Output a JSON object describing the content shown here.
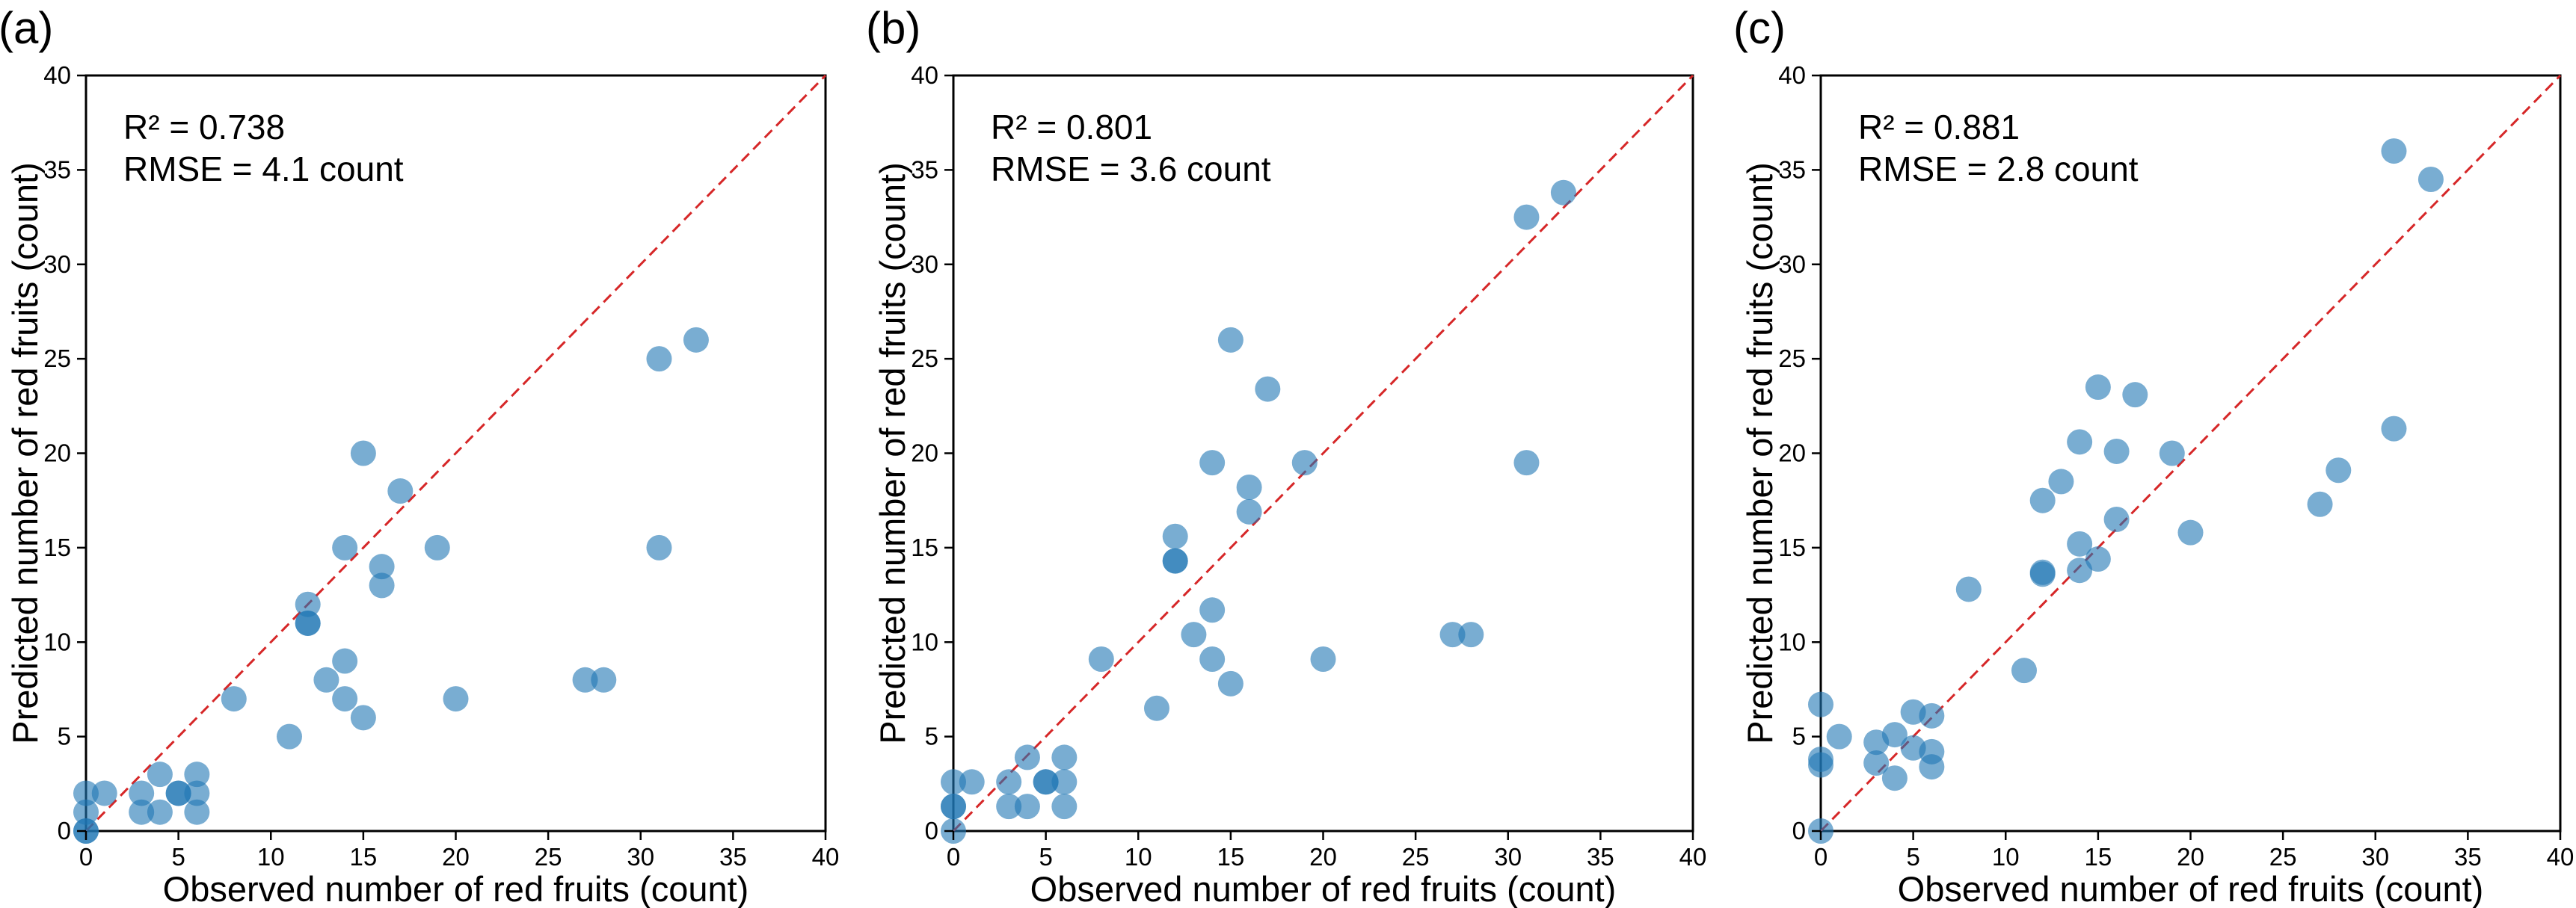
{
  "colors": {
    "points": "#1f77b4",
    "identity_line": "#d62728"
  },
  "chart_data": [
    {
      "type": "scatter",
      "panel_label": "(a)",
      "xlabel": "Observed number of red fruits (count)",
      "ylabel": "Predicted number of red fruits (count)",
      "xlim": [
        0,
        40
      ],
      "ylim": [
        0,
        40
      ],
      "xticks": [
        0,
        5,
        10,
        15,
        20,
        25,
        30,
        35,
        40
      ],
      "yticks": [
        0,
        5,
        10,
        15,
        20,
        25,
        30,
        35,
        40
      ],
      "annotations": [
        "R² = 0.738",
        "RMSE = 4.1 count"
      ],
      "reference_line": "1:1 dashed",
      "points": [
        [
          0,
          0
        ],
        [
          0,
          0
        ],
        [
          0,
          1
        ],
        [
          0,
          2
        ],
        [
          1,
          2
        ],
        [
          3,
          1
        ],
        [
          3,
          2
        ],
        [
          4,
          1
        ],
        [
          4,
          3
        ],
        [
          5,
          2
        ],
        [
          5,
          2
        ],
        [
          6,
          1
        ],
        [
          6,
          2
        ],
        [
          6,
          3
        ],
        [
          8,
          7
        ],
        [
          11,
          5
        ],
        [
          12,
          11
        ],
        [
          12,
          11
        ],
        [
          12,
          12
        ],
        [
          13,
          8
        ],
        [
          14,
          7
        ],
        [
          14,
          9
        ],
        [
          14,
          15
        ],
        [
          15,
          6
        ],
        [
          15,
          20
        ],
        [
          16,
          13
        ],
        [
          16,
          14
        ],
        [
          17,
          18
        ],
        [
          19,
          15
        ],
        [
          20,
          7
        ],
        [
          27,
          8
        ],
        [
          28,
          8
        ],
        [
          31,
          15
        ],
        [
          31,
          25
        ],
        [
          33,
          26
        ]
      ]
    },
    {
      "type": "scatter",
      "panel_label": "(b)",
      "xlabel": "Observed number of red fruits (count)",
      "ylabel": "Predicted number of red fruits (count)",
      "xlim": [
        0,
        40
      ],
      "ylim": [
        0,
        40
      ],
      "xticks": [
        0,
        5,
        10,
        15,
        20,
        25,
        30,
        35,
        40
      ],
      "yticks": [
        0,
        5,
        10,
        15,
        20,
        25,
        30,
        35,
        40
      ],
      "annotations": [
        "R² = 0.801",
        "RMSE = 3.6 count"
      ],
      "reference_line": "1:1 dashed",
      "points": [
        [
          0,
          0
        ],
        [
          0,
          1.3
        ],
        [
          0,
          1.3
        ],
        [
          0,
          2.6
        ],
        [
          1,
          2.6
        ],
        [
          3,
          1.3
        ],
        [
          3,
          2.6
        ],
        [
          4,
          1.3
        ],
        [
          4,
          3.9
        ],
        [
          5,
          2.6
        ],
        [
          5,
          2.6
        ],
        [
          6,
          1.3
        ],
        [
          6,
          2.6
        ],
        [
          6,
          3.9
        ],
        [
          8,
          9.1
        ],
        [
          11,
          6.5
        ],
        [
          12,
          14.3
        ],
        [
          12,
          14.3
        ],
        [
          12,
          15.6
        ],
        [
          13,
          10.4
        ],
        [
          14,
          9.1
        ],
        [
          14,
          11.7
        ],
        [
          14,
          19.5
        ],
        [
          15,
          7.8
        ],
        [
          15,
          26
        ],
        [
          16,
          16.9
        ],
        [
          16,
          18.2
        ],
        [
          17,
          23.4
        ],
        [
          19,
          19.5
        ],
        [
          20,
          9.1
        ],
        [
          27,
          10.4
        ],
        [
          28,
          10.4
        ],
        [
          31,
          19.5
        ],
        [
          31,
          32.5
        ],
        [
          33,
          33.8
        ]
      ]
    },
    {
      "type": "scatter",
      "panel_label": "(c)",
      "xlabel": "Observed number of red fruits (count)",
      "ylabel": "Predicted number of red fruits (count)",
      "xlim": [
        0,
        40
      ],
      "ylim": [
        0,
        40
      ],
      "xticks": [
        0,
        5,
        10,
        15,
        20,
        25,
        30,
        35,
        40
      ],
      "yticks": [
        0,
        5,
        10,
        15,
        20,
        25,
        30,
        35,
        40
      ],
      "annotations": [
        "R² = 0.881",
        "RMSE = 2.8 count"
      ],
      "reference_line": "1:1 dashed",
      "points": [
        [
          0,
          0
        ],
        [
          0,
          3.5
        ],
        [
          0,
          3.8
        ],
        [
          0,
          6.7
        ],
        [
          1,
          5
        ],
        [
          3,
          3.6
        ],
        [
          3,
          4.7
        ],
        [
          4,
          2.8
        ],
        [
          4,
          5.1
        ],
        [
          5,
          4.4
        ],
        [
          5,
          6.3
        ],
        [
          6,
          3.4
        ],
        [
          6,
          4.2
        ],
        [
          6,
          6.1
        ],
        [
          8,
          12.8
        ],
        [
          11,
          8.5
        ],
        [
          12,
          13.6
        ],
        [
          12,
          13.7
        ],
        [
          12,
          17.5
        ],
        [
          13,
          18.5
        ],
        [
          14,
          13.8
        ],
        [
          14,
          15.2
        ],
        [
          14,
          20.6
        ],
        [
          15,
          14.4
        ],
        [
          15,
          23.5
        ],
        [
          16,
          16.5
        ],
        [
          16,
          20.1
        ],
        [
          17,
          23.1
        ],
        [
          19,
          20
        ],
        [
          20,
          15.8
        ],
        [
          27,
          17.3
        ],
        [
          28,
          19.1
        ],
        [
          31,
          21.3
        ],
        [
          31,
          36
        ],
        [
          33,
          34.5
        ]
      ]
    }
  ]
}
